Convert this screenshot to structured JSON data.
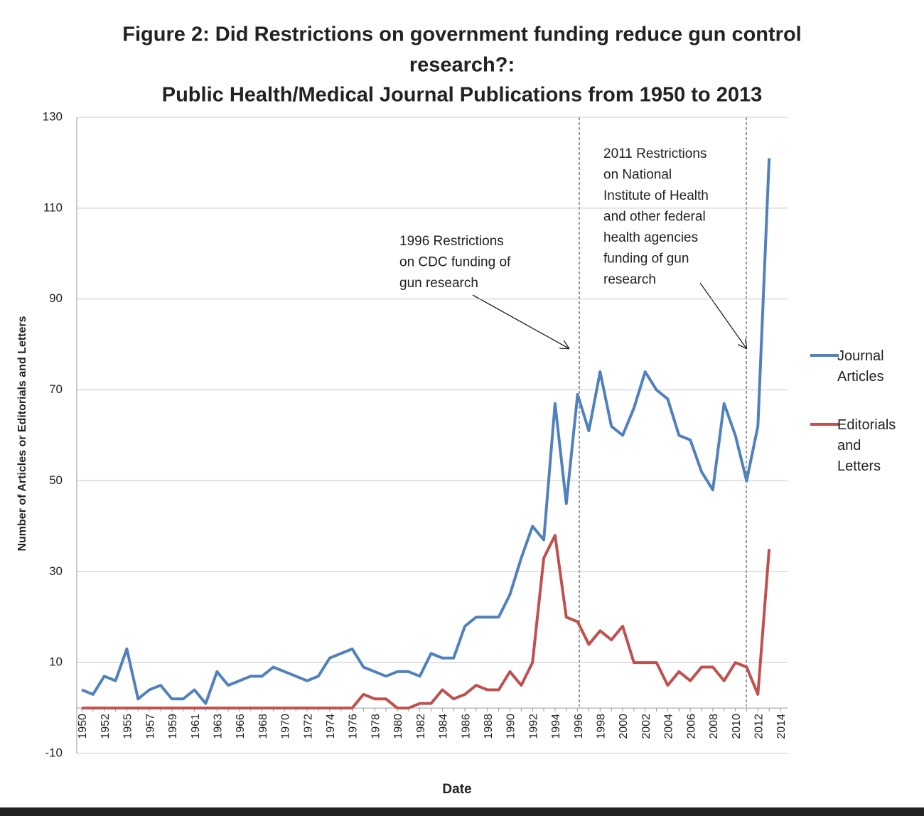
{
  "chart_data": {
    "type": "line",
    "title": [
      "Figure 2: Did Restrictions on government funding reduce gun control",
      "research?:"
    ],
    "subtitle": "Public Health/Medical Journal Publications from 1950 to 2013",
    "x_label": "Date",
    "y_label": "Number of Articles or Editorials and Letters",
    "categories": [
      "1950",
      null,
      "1952",
      null,
      "1955",
      null,
      "1957",
      null,
      "1959",
      null,
      "1961",
      null,
      "1963",
      null,
      "1966",
      null,
      "1968",
      null,
      "1970",
      null,
      "1972",
      null,
      "1974",
      null,
      "1976",
      null,
      "1978",
      null,
      "1980",
      null,
      "1982",
      null,
      "1984",
      null,
      "1986",
      null,
      "1988",
      null,
      "1990",
      null,
      "1992",
      null,
      "1994",
      null,
      "1996",
      null,
      "1998",
      null,
      "2000",
      null,
      "2002",
      null,
      "2004",
      null,
      "2006",
      null,
      "2008",
      null,
      "2010",
      null,
      "2012",
      null,
      "2014"
    ],
    "series": [
      {
        "name": "Journal Articles",
        "color": "#4f81bd",
        "values": [
          4,
          3,
          7,
          6,
          13,
          2,
          4,
          5,
          2,
          2,
          4,
          1,
          8,
          5,
          6,
          7,
          7,
          9,
          8,
          7,
          6,
          7,
          11,
          12,
          13,
          9,
          8,
          7,
          8,
          8,
          7,
          12,
          11,
          11,
          18,
          20,
          20,
          20,
          25,
          33,
          40,
          37,
          67,
          45,
          69,
          61,
          74,
          62,
          60,
          66,
          74,
          70,
          68,
          60,
          59,
          52,
          48,
          67,
          60,
          50,
          62,
          121,
          null
        ]
      },
      {
        "name": "Editorials and Letters",
        "color": "#c0504d",
        "values": [
          0,
          0,
          0,
          0,
          0,
          0,
          0,
          0,
          0,
          0,
          0,
          0,
          0,
          0,
          0,
          0,
          0,
          0,
          0,
          0,
          0,
          0,
          0,
          0,
          0,
          3,
          2,
          2,
          0,
          0,
          1,
          1,
          4,
          2,
          3,
          5,
          4,
          4,
          8,
          5,
          10,
          33,
          38,
          20,
          19,
          14,
          17,
          15,
          18,
          10,
          10,
          10,
          5,
          8,
          6,
          9,
          9,
          6,
          10,
          9,
          3,
          35,
          null
        ]
      }
    ],
    "ylim": [
      -10,
      130
    ],
    "yticks": [
      -10,
      10,
      30,
      50,
      70,
      90,
      110,
      130
    ],
    "grid": true,
    "legend": "right",
    "annotations": [
      [
        "1996 Restrictions",
        "on CDC funding of",
        "gun research"
      ],
      [
        "2011 Restrictions",
        "on National",
        "Institute of Health",
        "and other federal",
        "health agencies",
        "funding of gun",
        "research"
      ]
    ]
  }
}
